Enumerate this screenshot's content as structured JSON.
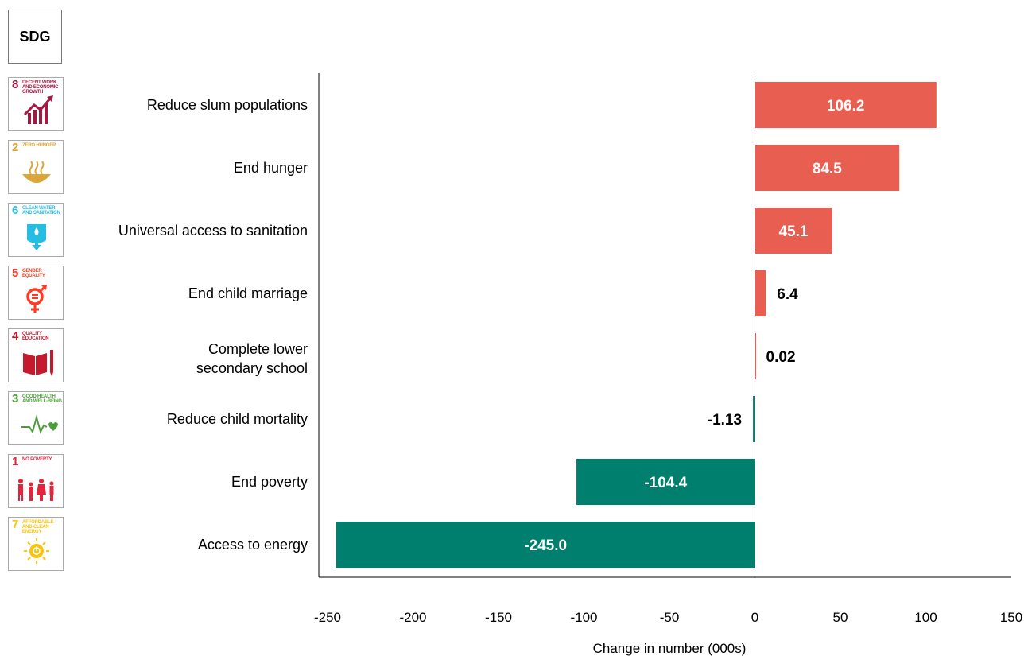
{
  "header": {
    "sdg_label": "SDG"
  },
  "sdg_icons": [
    {
      "number": "8",
      "caption": "DECENT WORK AND ECONOMIC GROWTH",
      "color": "#A21942",
      "icon": "growth-chart-icon"
    },
    {
      "number": "2",
      "caption": "ZERO HUNGER",
      "color": "#DDA63A",
      "icon": "food-bowl-icon"
    },
    {
      "number": "6",
      "caption": "CLEAN WATER AND SANITATION",
      "color": "#26BDE2",
      "icon": "water-drop-icon"
    },
    {
      "number": "5",
      "caption": "GENDER EQUALITY",
      "color": "#FF3A21",
      "icon": "gender-symbol-icon"
    },
    {
      "number": "4",
      "caption": "QUALITY EDUCATION",
      "color": "#C5192D",
      "icon": "book-pencil-icon"
    },
    {
      "number": "3",
      "caption": "GOOD HEALTH AND WELL-BEING",
      "color": "#4C9F38",
      "icon": "heartbeat-icon"
    },
    {
      "number": "1",
      "caption": "NO POVERTY",
      "color": "#E5243B",
      "icon": "family-icon"
    },
    {
      "number": "7",
      "caption": "AFFORDABLE AND CLEAN ENERGY",
      "color": "#FCC30B",
      "icon": "sun-power-icon"
    }
  ],
  "chart_data": {
    "type": "bar",
    "orientation": "horizontal",
    "categories": [
      "Reduce slum populations",
      "End hunger",
      "Universal access to sanitation",
      "End child marriage",
      "Complete lower secondary school",
      "Reduce child mortality",
      "End poverty",
      "Access to energy"
    ],
    "values": [
      106.2,
      84.5,
      45.1,
      6.4,
      0.02,
      -1.13,
      -104.4,
      -245.0
    ],
    "value_labels": [
      "106.2",
      "84.5",
      "45.1",
      "6.4",
      "0.02",
      "-1.13",
      "-104.4",
      "-245.0"
    ],
    "xlabel": "Change in number (000s)",
    "xlim": [
      -250,
      150
    ],
    "xticks": [
      -250,
      -200,
      -150,
      -100,
      -50,
      0,
      50,
      100,
      150
    ],
    "positive_color": "#E85E51",
    "negative_color": "#007F6E",
    "grid": false
  }
}
